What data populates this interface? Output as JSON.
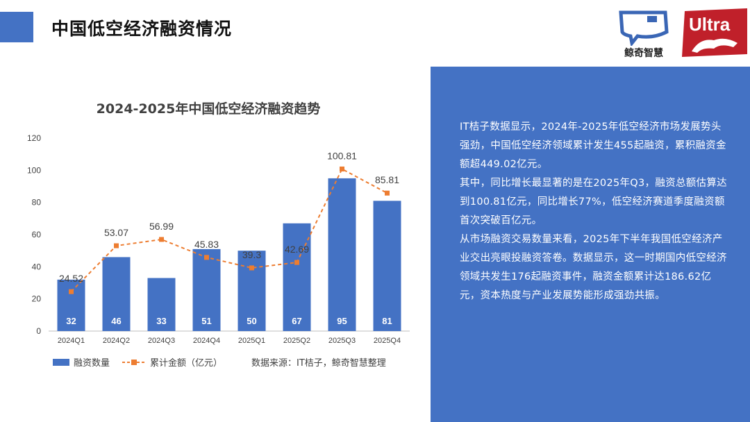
{
  "header": {
    "title": "中国低空经济融资情况",
    "logo1_label": "鲸奇智慧",
    "logo2_text": "Ultra"
  },
  "panel": {
    "paragraphs": [
      "IT桔子数据显示，2024年-2025年低空经济市场发展势头强劲，中国低空经济领域累计发生455起融资，累积融资金额超449.02亿元。",
      "其中，同比增长最显著的是在2025年Q3，融资总额估算达到100.81亿元，同比增长77%，低空经济赛道季度融资额首次突破百亿元。",
      "从市场融资交易数量来看，2025年下半年我国低空经济产业交出亮眼投融资答卷。数据显示，这一时期国内低空经济领域共发生176起融资事件，融资金额累计达186.62亿元，资本热度与产业发展势能形成强劲共振。"
    ]
  },
  "colors": {
    "accent": "#4472C4",
    "line": "#ED7D31"
  },
  "chart_data": {
    "type": "bar",
    "title": "2024-2025年中国低空经济融资趋势",
    "categories": [
      "2024Q1",
      "2024Q2",
      "2024Q3",
      "2024Q4",
      "2025Q1",
      "2025Q2",
      "2025Q3",
      "2025Q4"
    ],
    "series": [
      {
        "name": "融资数量",
        "type": "bar",
        "values": [
          32,
          46,
          33,
          51,
          50,
          67,
          95,
          81
        ]
      },
      {
        "name": "累计金额（亿元）",
        "type": "line",
        "style": "dashed",
        "values": [
          24.52,
          53.07,
          56.99,
          45.83,
          39.3,
          42.69,
          100.81,
          85.81
        ]
      }
    ],
    "ylim": [
      0,
      120
    ],
    "yticks": [
      0,
      20,
      40,
      60,
      80,
      100,
      120
    ],
    "grid": false,
    "legend_position": "bottom-left",
    "source_note": "数据来源：IT桔子，鲸奇智慧整理"
  }
}
